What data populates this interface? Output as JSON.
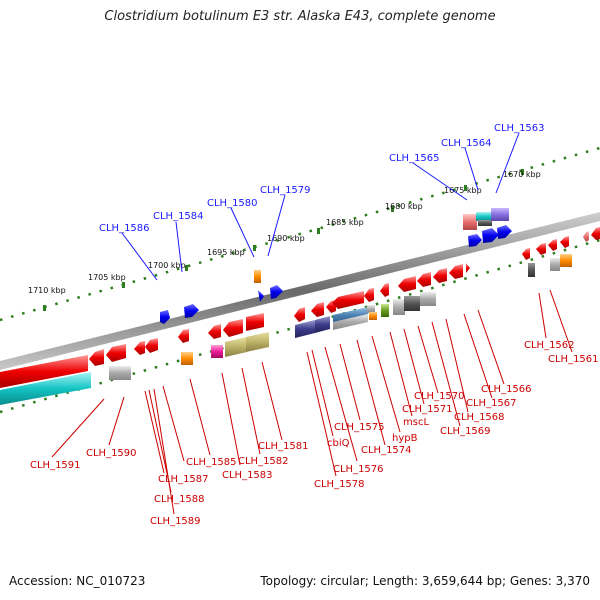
{
  "title": "Clostridium botulinum E3 str. Alaska E43, complete genome",
  "accession_text": "Accession: NC_010723",
  "summary_text": "Topology: circular; Length: 3,659,644 bp; Genes: 3,370",
  "scale_labels": [
    "1670 kbp",
    "1675 kbp",
    "1680 kbp",
    "1685 kbp",
    "1690 kbp",
    "1695 kbp",
    "1700 kbp",
    "1705 kbp",
    "1710 kbp"
  ],
  "upper_labels": [
    "CLH_1563",
    "CLH_1564",
    "CLH_1565",
    "CLH_1579",
    "CLH_1580",
    "CLH_1584",
    "CLH_1586"
  ],
  "lower_labels": [
    "CLH_1591",
    "CLH_1590",
    "CLH_1587",
    "CLH_1588",
    "CLH_1589",
    "CLH_1585",
    "CLH_1583",
    "CLH_1582",
    "CLH_1581",
    "CLH_1578",
    "cbiQ",
    "CLH_1576",
    "CLH_1575",
    "CLH_1574",
    "hypB",
    "mscL",
    "CLH_1571",
    "CLH_1570",
    "CLH_1569",
    "CLH_1568",
    "CLH_1567",
    "CLH_1566",
    "CLH_1562",
    "CLH_1561"
  ],
  "colors": {
    "upper_label": "#1a1aff",
    "lower_label": "#cc0000",
    "forward_gene": "#0000ee",
    "reverse_gene": "#ee0000",
    "scale_tick": "#2e7d1e",
    "backbone": "#888888"
  }
}
